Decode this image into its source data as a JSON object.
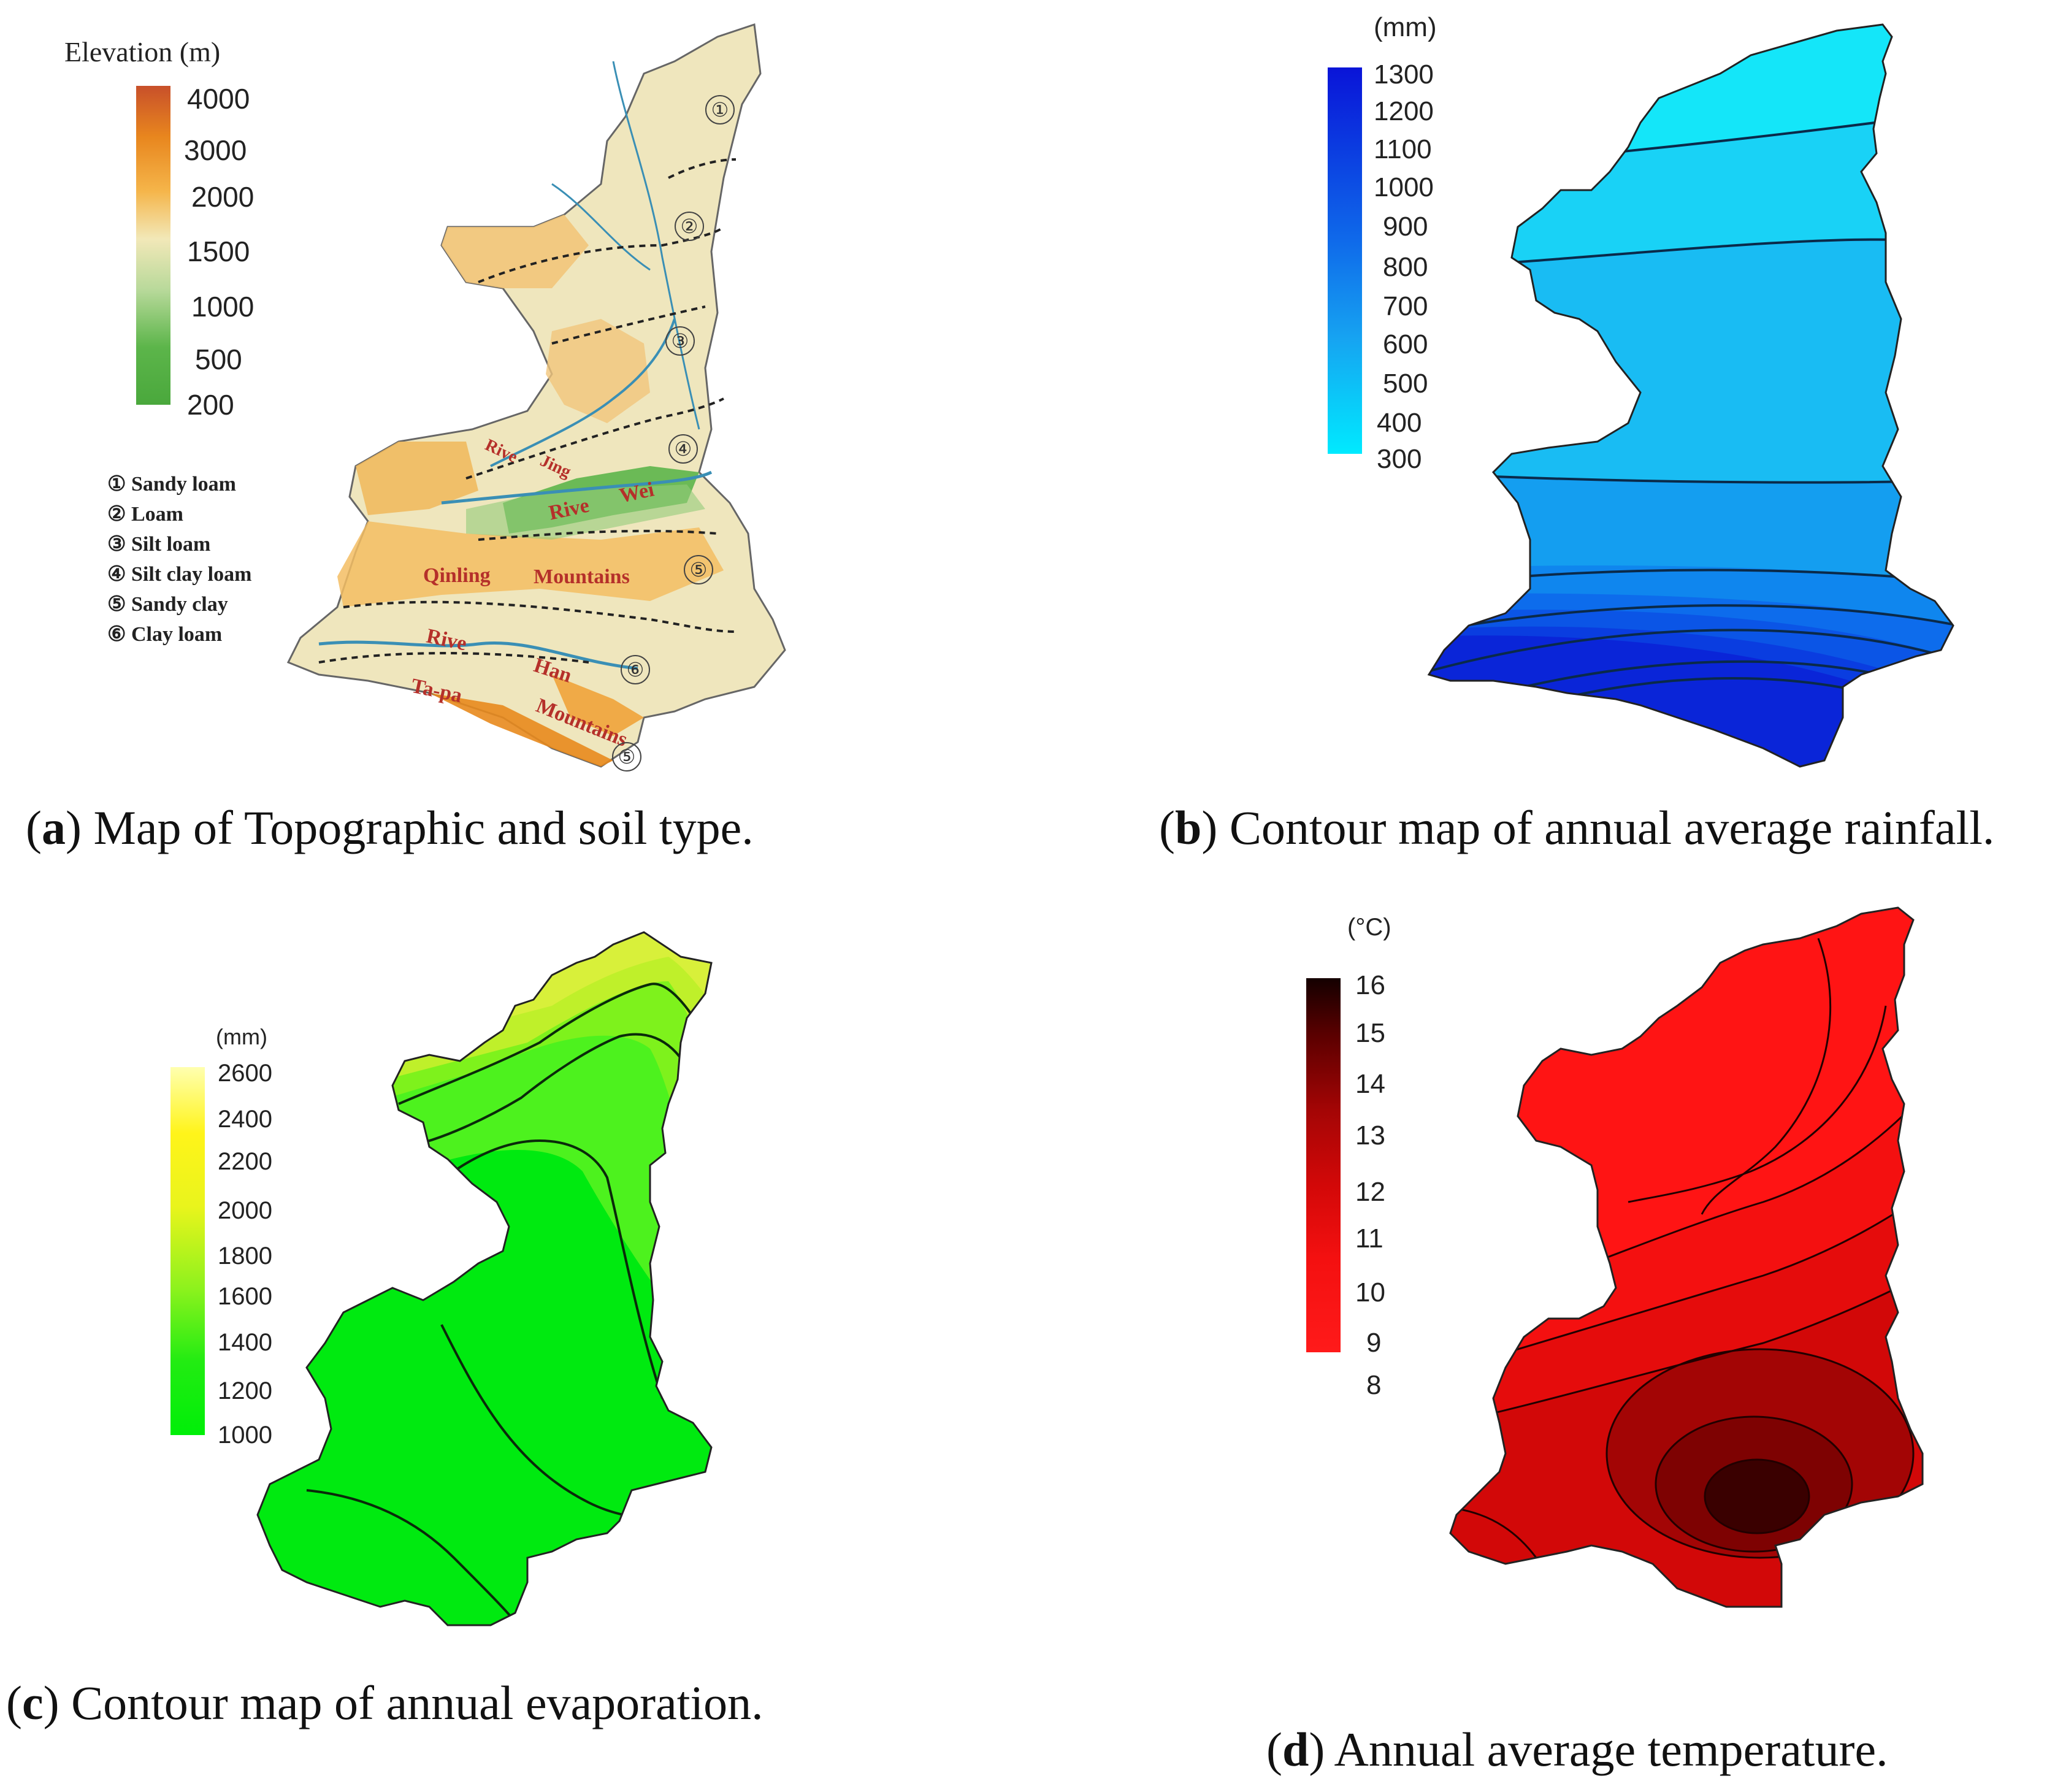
{
  "panel_a": {
    "legend_title": "Elevation (m)",
    "ticks": [
      "4000",
      "3000",
      "2000",
      "1500",
      "1000",
      "500",
      "200"
    ],
    "soil_types": [
      "① Sandy loam",
      "② Loam",
      "③ Silt loam",
      "④ Silt clay loam",
      "⑤ Sandy clay",
      "⑥ Clay loam"
    ],
    "map_labels": {
      "river_jing_1": "Rive",
      "river_jing_2": "Jing",
      "river_wei_1": "Rive",
      "river_wei_2": "Wei",
      "qinling_1": "Qinling",
      "qinling_2": "Mountains",
      "han_1": "Rive",
      "han_2": "Han",
      "tapa_1": "Ta-pa",
      "tapa_2": "Mountains"
    },
    "zone_marks": [
      "①",
      "②",
      "③",
      "④",
      "⑤",
      "⑥",
      "⑤"
    ],
    "caption_letter": "a",
    "caption_text": " Map of Topographic and soil type."
  },
  "panel_b": {
    "unit": "(mm)",
    "ticks": [
      "1300",
      "1200",
      "1100",
      "1000",
      "900",
      "800",
      "700",
      "600",
      "500",
      "400",
      "300"
    ],
    "colors": {
      "high": "#0a14d8",
      "low": "#00eaff"
    },
    "caption_letter": "b",
    "caption_text": " Contour map of annual average rainfall."
  },
  "panel_c": {
    "unit": "(mm)",
    "ticks": [
      "2600",
      "2400",
      "2200",
      "2000",
      "1800",
      "1600",
      "1400",
      "1200",
      "1000"
    ],
    "colors": {
      "high": "#ffffb0",
      "low": "#00ef08"
    },
    "caption_letter": "c",
    "caption_text": " Contour map of annual evaporation."
  },
  "panel_d": {
    "unit": "(°C)",
    "ticks": [
      "16",
      "15",
      "14",
      "13",
      "12",
      "11",
      "10",
      "9",
      "8"
    ],
    "colors": {
      "high": "#140000",
      "low": "#ff1a1a"
    },
    "caption_letter": "d",
    "caption_text": " Annual average temperature."
  }
}
